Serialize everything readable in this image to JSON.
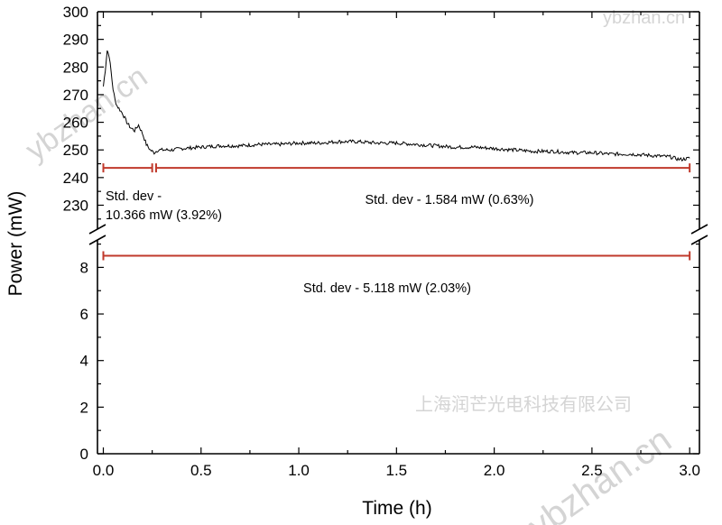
{
  "watermarks": {
    "site": "ybzhan.cn",
    "company": "上海润芒光电科技有限公司"
  },
  "chart_data": {
    "type": "line",
    "title": "",
    "xlabel": "Time (h)",
    "ylabel": "Power (mW)",
    "xlim": [
      -0.03,
      3.05
    ],
    "x_ticks": [
      "0.0",
      "0.5",
      "1.0",
      "1.5",
      "2.0",
      "2.5",
      "3.0"
    ],
    "x_tick_values": [
      0,
      0.5,
      1.0,
      1.5,
      2.0,
      2.5,
      3.0
    ],
    "axis_break": true,
    "upper_panel": {
      "ylim": [
        222,
        300
      ],
      "y_ticks": [
        "300",
        "290",
        "280",
        "270",
        "260",
        "250",
        "240",
        "230"
      ],
      "y_tick_values": [
        300,
        290,
        280,
        270,
        260,
        250,
        240,
        230
      ]
    },
    "lower_panel": {
      "ylim": [
        0,
        9.1
      ],
      "y_ticks": [
        "8",
        "6",
        "4",
        "2",
        "0"
      ],
      "y_tick_values": [
        8,
        6,
        4,
        2,
        0
      ]
    },
    "series": [
      {
        "name": "Power",
        "color": "#000000",
        "x": [
          0.0,
          0.01,
          0.02,
          0.03,
          0.04,
          0.05,
          0.06,
          0.07,
          0.08,
          0.09,
          0.1,
          0.12,
          0.14,
          0.16,
          0.18,
          0.2,
          0.22,
          0.24,
          0.26,
          0.28,
          0.3,
          0.35,
          0.4,
          0.5,
          0.6,
          0.7,
          0.8,
          0.9,
          1.0,
          1.1,
          1.2,
          1.3,
          1.4,
          1.5,
          1.6,
          1.7,
          1.8,
          1.9,
          2.0,
          2.1,
          2.2,
          2.3,
          2.4,
          2.5,
          2.6,
          2.7,
          2.8,
          2.9,
          2.95,
          3.0
        ],
        "values": [
          273,
          279,
          286,
          284,
          278,
          272,
          268,
          266,
          265,
          264,
          263,
          260,
          258,
          257,
          259,
          256,
          252,
          250,
          249,
          250,
          250,
          250,
          250.5,
          251,
          251.5,
          251.5,
          252,
          252,
          252.5,
          252.5,
          253,
          253,
          252.5,
          252.5,
          252,
          251.5,
          251,
          251,
          250.5,
          250,
          249.5,
          249.5,
          249,
          249,
          248.5,
          248.5,
          248,
          247.5,
          246.5,
          247
        ]
      }
    ],
    "std_dev_markers": [
      {
        "panel": "upper",
        "x_start": 0.0,
        "x_end": 0.25,
        "y": 243.5,
        "color": "#c0392b",
        "label_line1": "Std. dev -",
        "label_line2": "10.366 mW (3.92%)"
      },
      {
        "panel": "upper",
        "x_start": 0.27,
        "x_end": 3.0,
        "y": 243.5,
        "color": "#c0392b",
        "label_line1": "Std. dev - 1.584 mW (0.63%)"
      },
      {
        "panel": "lower",
        "x_start": 0.0,
        "x_end": 3.0,
        "y": 8.5,
        "color": "#c0392b",
        "label_line1": "Std. dev - 5.118 mW (2.03%)"
      }
    ]
  }
}
